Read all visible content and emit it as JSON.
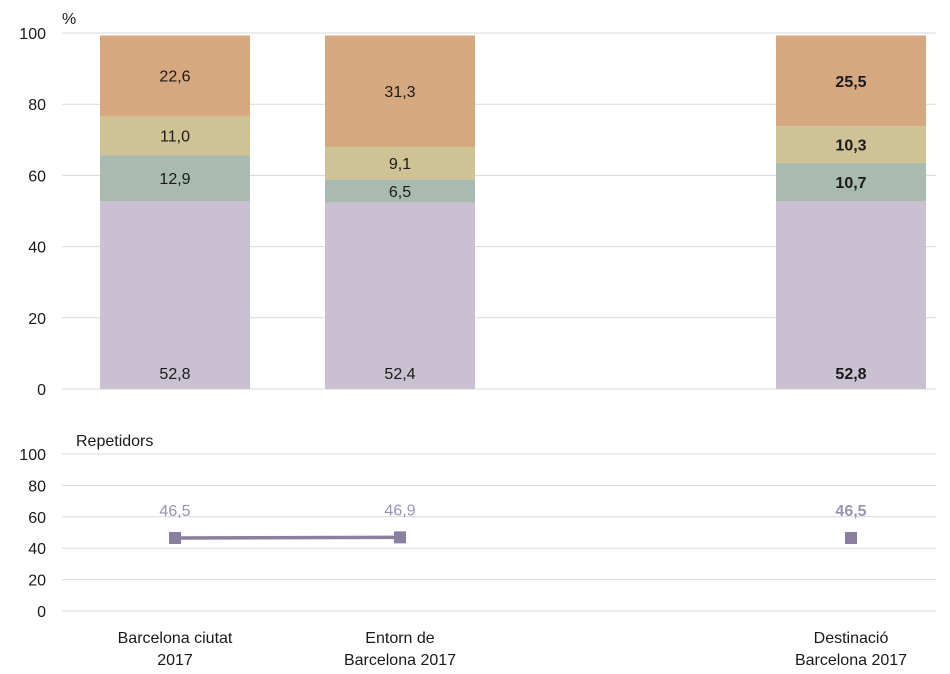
{
  "chart_data": [
    {
      "type": "bar",
      "stacked": true,
      "unit_label": "%",
      "ylim": [
        0,
        100
      ],
      "yticks": [
        0,
        20,
        40,
        60,
        80,
        100
      ],
      "categories": [
        "Barcelona ciutat 2017",
        "Entorn de Barcelona 2017",
        "Destinació Barcelona 2017"
      ],
      "series": [
        {
          "color": "#c9c0d1",
          "values": [
            52.8,
            52.4,
            52.8
          ],
          "labels": [
            "52,8",
            "52,4",
            "52,8"
          ]
        },
        {
          "color": "#a9bbb1",
          "values": [
            12.9,
            6.5,
            10.7
          ],
          "labels": [
            "12,9",
            "6,5",
            "10,7"
          ]
        },
        {
          "color": "#cfc294",
          "values": [
            11.0,
            9.1,
            10.3
          ],
          "labels": [
            "11,0",
            "9,1",
            "10,3"
          ]
        },
        {
          "color": "#d6a87f",
          "values": [
            22.6,
            31.3,
            25.5
          ],
          "labels": [
            "22,6",
            "31,3",
            "25,5"
          ]
        }
      ],
      "bold_category_index": 2,
      "grid": true
    },
    {
      "type": "line",
      "title": "Repetidors",
      "ylim": [
        0,
        100
      ],
      "yticks": [
        0,
        20,
        40,
        60,
        80,
        100
      ],
      "categories": [
        "Barcelona ciutat 2017",
        "Entorn de Barcelona 2017",
        "Destinació Barcelona 2017"
      ],
      "values": [
        46.5,
        46.9,
        46.5
      ],
      "labels": [
        "46,5",
        "46,9",
        "46,5"
      ],
      "connected": [
        true,
        true,
        false
      ],
      "color": "#8a7fa0",
      "label_color": "#9b92b4",
      "bold_category_index": 2,
      "grid": true
    }
  ],
  "x_labels": [
    [
      "Barcelona ciutat",
      "2017"
    ],
    [
      "Entorn de",
      "Barcelona 2017"
    ],
    [
      "Destinació",
      "Barcelona 2017"
    ]
  ]
}
